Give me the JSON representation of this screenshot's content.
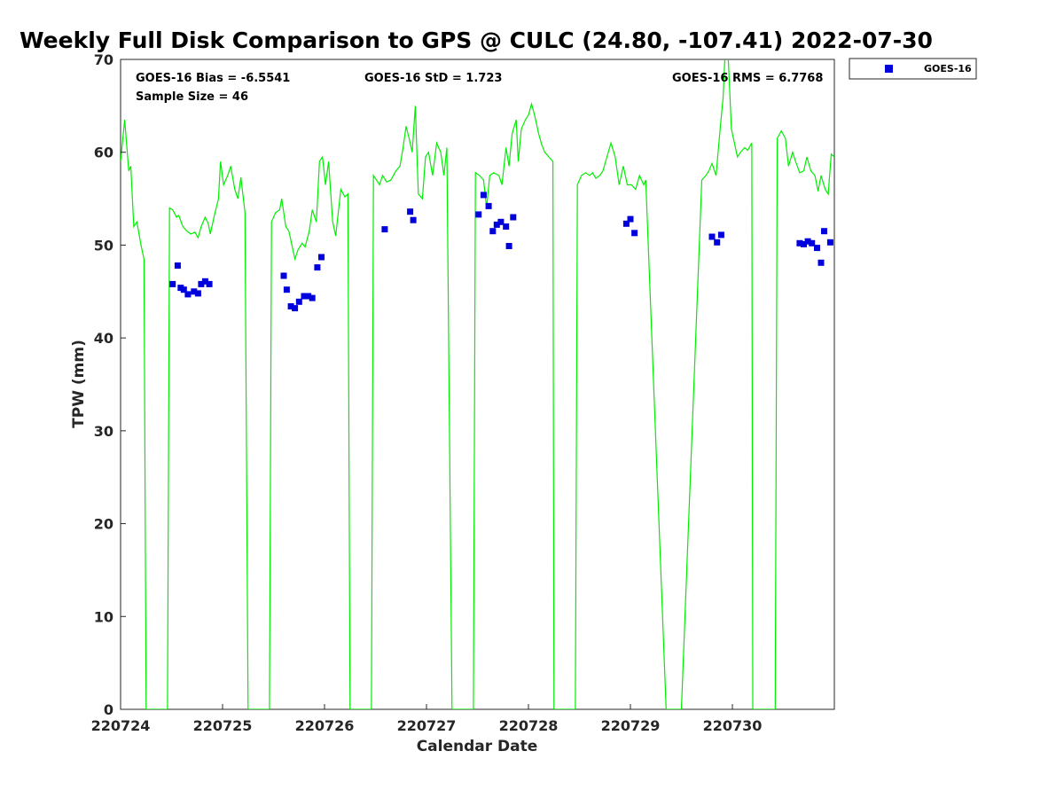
{
  "chart_data": {
    "type": "scatter",
    "title": "Weekly Full Disk Comparison to GPS @ CULC (24.80, -107.41) 2022-07-30",
    "xlabel": "Calendar Date",
    "ylabel": "TPW (mm)",
    "xlim": [
      0,
      7
    ],
    "ylim": [
      0,
      70
    ],
    "x_ticks": [
      0,
      1,
      2,
      3,
      4,
      5,
      6
    ],
    "x_tick_labels": [
      "220724",
      "220725",
      "220726",
      "220727",
      "220728",
      "220729",
      "220730"
    ],
    "y_ticks": [
      0,
      10,
      20,
      30,
      40,
      50,
      60,
      70
    ],
    "y_tick_labels": [
      "0",
      "10",
      "20",
      "30",
      "40",
      "50",
      "60",
      "70"
    ],
    "grid": false,
    "legend_position": "top-right, outside plot",
    "stats": {
      "bias": "GOES-16 Bias = -6.5541",
      "std": "GOES-16 StD = 1.723",
      "rms": "GOES-16 RMS = 6.7768",
      "sample": "Sample Size = 46"
    },
    "series": [
      {
        "name": "GOES-16",
        "marker": "square",
        "color": "#0000dd",
        "points": [
          [
            0.51,
            45.8
          ],
          [
            0.56,
            47.8
          ],
          [
            0.59,
            45.4
          ],
          [
            0.62,
            45.2
          ],
          [
            0.66,
            44.7
          ],
          [
            0.72,
            45.0
          ],
          [
            0.76,
            44.8
          ],
          [
            0.79,
            45.8
          ],
          [
            0.83,
            46.1
          ],
          [
            0.87,
            45.8
          ],
          [
            1.6,
            46.7
          ],
          [
            1.63,
            45.2
          ],
          [
            1.67,
            43.4
          ],
          [
            1.71,
            43.2
          ],
          [
            1.75,
            43.9
          ],
          [
            1.8,
            44.5
          ],
          [
            1.84,
            44.5
          ],
          [
            1.88,
            44.3
          ],
          [
            1.93,
            47.6
          ],
          [
            1.97,
            48.7
          ],
          [
            2.59,
            51.7
          ],
          [
            2.84,
            53.6
          ],
          [
            2.87,
            52.7
          ],
          [
            3.51,
            53.3
          ],
          [
            3.56,
            55.4
          ],
          [
            3.61,
            54.2
          ],
          [
            3.65,
            51.5
          ],
          [
            3.69,
            52.2
          ],
          [
            3.73,
            52.5
          ],
          [
            3.78,
            52.0
          ],
          [
            3.81,
            49.9
          ],
          [
            3.85,
            53.0
          ],
          [
            4.96,
            52.3
          ],
          [
            5.0,
            52.8
          ],
          [
            5.04,
            51.3
          ],
          [
            5.8,
            50.9
          ],
          [
            5.85,
            50.3
          ],
          [
            5.89,
            51.1
          ],
          [
            6.66,
            50.2
          ],
          [
            6.7,
            50.1
          ],
          [
            6.74,
            50.4
          ],
          [
            6.78,
            50.2
          ],
          [
            6.83,
            49.7
          ],
          [
            6.87,
            48.1
          ],
          [
            6.9,
            51.5
          ],
          [
            6.96,
            50.3
          ]
        ]
      },
      {
        "type": "line",
        "color": "#00ee00",
        "points": [
          [
            0.0,
            59.0
          ],
          [
            0.04,
            63.5
          ],
          [
            0.08,
            58.0
          ],
          [
            0.1,
            58.5
          ],
          [
            0.13,
            52.0
          ],
          [
            0.16,
            52.5
          ],
          [
            0.2,
            50.0
          ],
          [
            0.23,
            48.5
          ],
          [
            0.25,
            0.0
          ],
          [
            0.46,
            0.0
          ],
          [
            0.48,
            54.0
          ],
          [
            0.51,
            53.8
          ],
          [
            0.55,
            53.0
          ],
          [
            0.57,
            53.2
          ],
          [
            0.61,
            52.0
          ],
          [
            0.65,
            51.5
          ],
          [
            0.69,
            51.2
          ],
          [
            0.73,
            51.4
          ],
          [
            0.76,
            50.8
          ],
          [
            0.79,
            52.0
          ],
          [
            0.83,
            53.0
          ],
          [
            0.86,
            52.3
          ],
          [
            0.88,
            51.2
          ],
          [
            0.92,
            53.2
          ],
          [
            0.96,
            55.0
          ],
          [
            0.98,
            59.0
          ],
          [
            1.01,
            56.5
          ],
          [
            1.05,
            57.5
          ],
          [
            1.08,
            58.5
          ],
          [
            1.12,
            56.0
          ],
          [
            1.15,
            55.0
          ],
          [
            1.18,
            57.3
          ],
          [
            1.22,
            53.5
          ],
          [
            1.25,
            0.0
          ],
          [
            1.46,
            0.0
          ],
          [
            1.48,
            52.5
          ],
          [
            1.52,
            53.5
          ],
          [
            1.56,
            53.8
          ],
          [
            1.58,
            55.0
          ],
          [
            1.62,
            52.0
          ],
          [
            1.65,
            51.5
          ],
          [
            1.68,
            50.0
          ],
          [
            1.71,
            48.5
          ],
          [
            1.74,
            49.5
          ],
          [
            1.78,
            50.2
          ],
          [
            1.81,
            49.8
          ],
          [
            1.85,
            51.5
          ],
          [
            1.88,
            53.8
          ],
          [
            1.92,
            52.5
          ],
          [
            1.95,
            59.0
          ],
          [
            1.98,
            59.5
          ],
          [
            2.01,
            56.5
          ],
          [
            2.04,
            59.0
          ],
          [
            2.08,
            52.5
          ],
          [
            2.11,
            51.0
          ],
          [
            2.16,
            56.0
          ],
          [
            2.2,
            55.2
          ],
          [
            2.23,
            55.5
          ],
          [
            2.25,
            0.0
          ],
          [
            2.46,
            0.0
          ],
          [
            2.48,
            57.5
          ],
          [
            2.51,
            57.0
          ],
          [
            2.54,
            56.5
          ],
          [
            2.57,
            57.5
          ],
          [
            2.61,
            56.8
          ],
          [
            2.65,
            57.0
          ],
          [
            2.7,
            58.0
          ],
          [
            2.74,
            58.5
          ],
          [
            2.77,
            60.5
          ],
          [
            2.8,
            62.8
          ],
          [
            2.83,
            61.5
          ],
          [
            2.86,
            60.0
          ],
          [
            2.89,
            65.0
          ],
          [
            2.92,
            55.5
          ],
          [
            2.96,
            55.0
          ],
          [
            2.99,
            59.5
          ],
          [
            3.02,
            60.0
          ],
          [
            3.06,
            57.5
          ],
          [
            3.1,
            61.0
          ],
          [
            3.14,
            60.0
          ],
          [
            3.17,
            57.5
          ],
          [
            3.2,
            60.5
          ],
          [
            3.25,
            0.0
          ],
          [
            3.46,
            0.0
          ],
          [
            3.48,
            57.8
          ],
          [
            3.52,
            57.5
          ],
          [
            3.56,
            57.0
          ],
          [
            3.59,
            54.0
          ],
          [
            3.62,
            57.5
          ],
          [
            3.66,
            57.8
          ],
          [
            3.71,
            57.5
          ],
          [
            3.74,
            56.5
          ],
          [
            3.78,
            60.5
          ],
          [
            3.81,
            58.5
          ],
          [
            3.84,
            62.0
          ],
          [
            3.88,
            63.5
          ],
          [
            3.9,
            59.0
          ],
          [
            3.93,
            62.5
          ],
          [
            3.97,
            63.5
          ],
          [
            4.0,
            64.0
          ],
          [
            4.03,
            65.2
          ],
          [
            4.06,
            64.0
          ],
          [
            4.1,
            62.0
          ],
          [
            4.13,
            60.8
          ],
          [
            4.16,
            60.0
          ],
          [
            4.2,
            59.5
          ],
          [
            4.24,
            59.0
          ],
          [
            4.25,
            0.0
          ],
          [
            4.46,
            0.0
          ],
          [
            4.48,
            56.5
          ],
          [
            4.52,
            57.5
          ],
          [
            4.56,
            57.8
          ],
          [
            4.6,
            57.5
          ],
          [
            4.63,
            57.8
          ],
          [
            4.66,
            57.2
          ],
          [
            4.7,
            57.5
          ],
          [
            4.73,
            58.0
          ],
          [
            4.77,
            59.5
          ],
          [
            4.81,
            61.0
          ],
          [
            4.85,
            59.5
          ],
          [
            4.89,
            56.5
          ],
          [
            4.93,
            58.5
          ],
          [
            4.97,
            56.5
          ],
          [
            5.01,
            56.5
          ],
          [
            5.05,
            56.0
          ],
          [
            5.09,
            57.5
          ],
          [
            5.13,
            56.5
          ],
          [
            5.15,
            57.0
          ],
          [
            5.35,
            0.0
          ],
          [
            5.5,
            0.0
          ],
          [
            5.7,
            57.0
          ],
          [
            5.74,
            57.5
          ],
          [
            5.77,
            58.0
          ],
          [
            5.8,
            58.8
          ],
          [
            5.84,
            57.5
          ],
          [
            5.88,
            62.5
          ],
          [
            5.91,
            66.0
          ],
          [
            5.93,
            71.0
          ],
          [
            5.96,
            70.0
          ],
          [
            5.99,
            62.5
          ],
          [
            6.02,
            61.0
          ],
          [
            6.05,
            59.5
          ],
          [
            6.08,
            60.0
          ],
          [
            6.12,
            60.5
          ],
          [
            6.15,
            60.2
          ],
          [
            6.19,
            61.0
          ],
          [
            6.2,
            0.0
          ],
          [
            6.42,
            0.0
          ],
          [
            6.44,
            61.5
          ],
          [
            6.48,
            62.3
          ],
          [
            6.52,
            61.5
          ],
          [
            6.55,
            58.5
          ],
          [
            6.59,
            60.0
          ],
          [
            6.62,
            59.0
          ],
          [
            6.66,
            57.8
          ],
          [
            6.7,
            58.0
          ],
          [
            6.73,
            59.5
          ],
          [
            6.77,
            58.0
          ],
          [
            6.81,
            57.5
          ],
          [
            6.84,
            55.8
          ],
          [
            6.87,
            57.5
          ],
          [
            6.91,
            56.0
          ],
          [
            6.94,
            55.5
          ],
          [
            6.97,
            59.8
          ],
          [
            7.0,
            59.5
          ]
        ]
      }
    ]
  }
}
